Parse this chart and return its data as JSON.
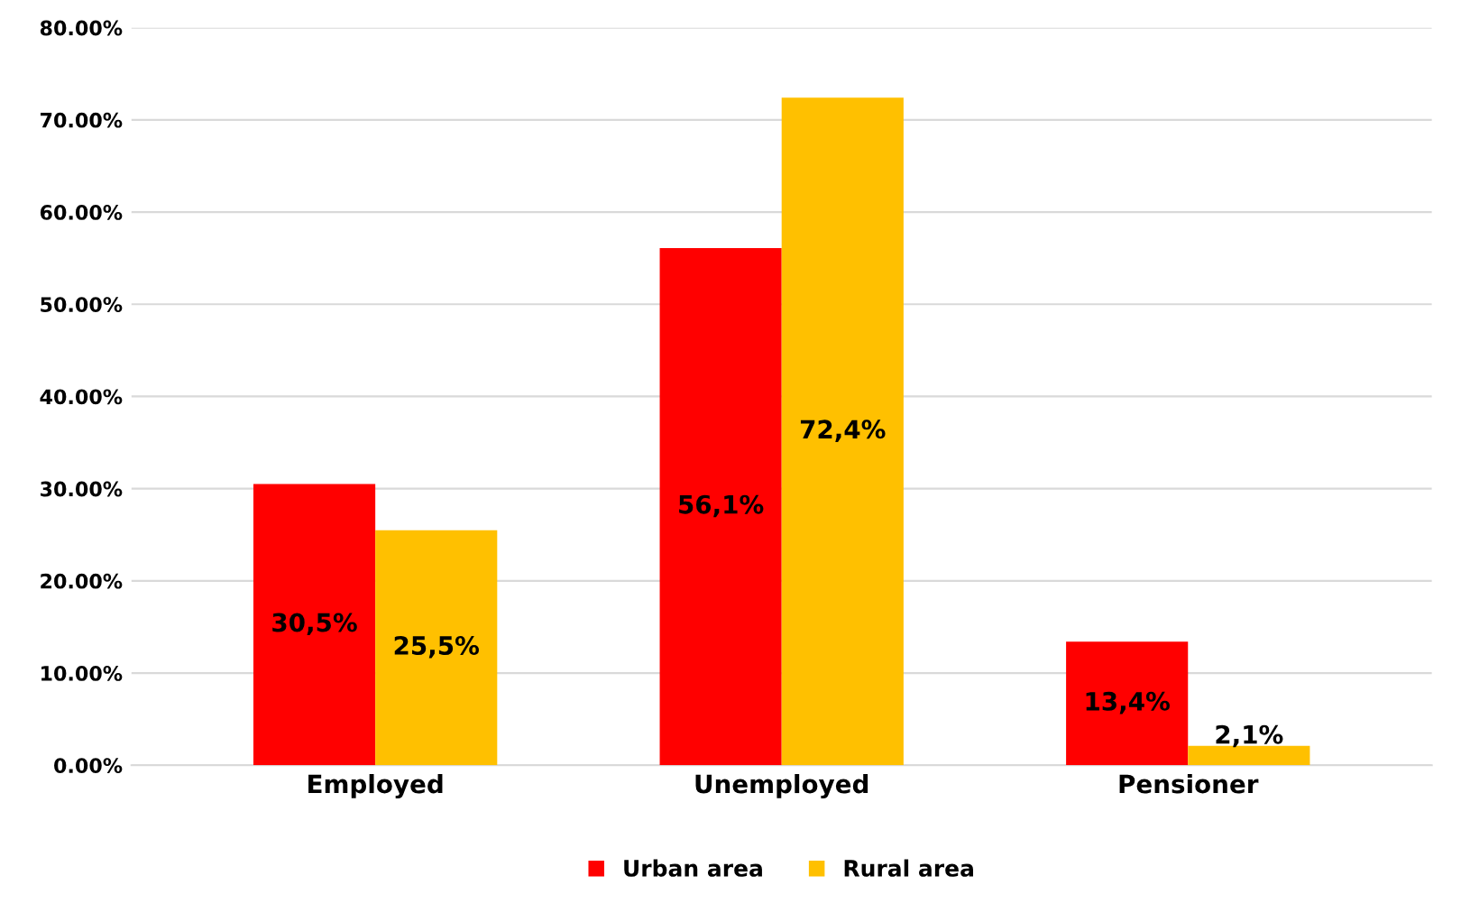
{
  "chart_data": {
    "type": "bar",
    "categories": [
      "Employed",
      "Unemployed",
      "Pensioner"
    ],
    "series": [
      {
        "name": "Urban area",
        "color": "#ff0000",
        "values": [
          30.5,
          56.1,
          13.4
        ],
        "value_labels": [
          "30,5%",
          "56,1%",
          "13,4%"
        ]
      },
      {
        "name": "Rural area",
        "color": "#ffc000",
        "values": [
          25.5,
          72.4,
          2.1
        ],
        "value_labels": [
          "25,5%",
          "72,4%",
          "2,1%"
        ]
      }
    ],
    "ylim": [
      0,
      80
    ],
    "yticks": [
      {
        "value": 0,
        "label": "0.00%"
      },
      {
        "value": 10,
        "label": "10.00%"
      },
      {
        "value": 20,
        "label": "20.00%"
      },
      {
        "value": 30,
        "label": "30.00%"
      },
      {
        "value": 40,
        "label": "40.00%"
      },
      {
        "value": 50,
        "label": "50.00%"
      },
      {
        "value": 60,
        "label": "60.00%"
      },
      {
        "value": 70,
        "label": "70.00%"
      },
      {
        "value": 80,
        "label": "80.00%"
      }
    ],
    "grid": "y",
    "legend": "bottom"
  }
}
